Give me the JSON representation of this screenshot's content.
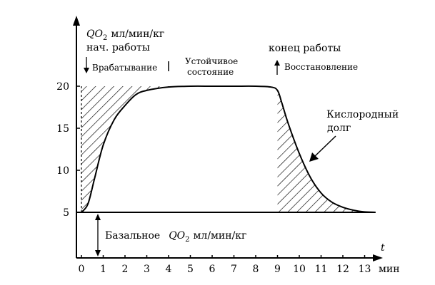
{
  "chart_data": {
    "type": "line",
    "xlabel": "t",
    "xunit": "мин",
    "ylim": [
      5,
      20
    ],
    "xlim": [
      0,
      13.5
    ],
    "xticks": [
      "0",
      "1",
      "2",
      "3",
      "4",
      "5",
      "6",
      "7",
      "8",
      "9",
      "10",
      "11",
      "12",
      "13"
    ],
    "yticks": [
      "5",
      "10",
      "15",
      "20"
    ],
    "series": [
      {
        "x": [
          0,
          0.3,
          0.6,
          1.0,
          1.5,
          2.0,
          2.5,
          3.0,
          4.0,
          5.0,
          6.0,
          7.0,
          8.0,
          8.7,
          9.0,
          9.2,
          9.5,
          10.0,
          10.5,
          11.0,
          11.5,
          12.0,
          12.5,
          13.0,
          13.5
        ],
        "y": [
          5,
          6,
          9,
          13,
          16,
          17.7,
          19,
          19.5,
          19.9,
          20,
          20,
          20,
          20,
          19.9,
          19.5,
          18,
          15.5,
          12,
          9.2,
          7.3,
          6.2,
          5.6,
          5.25,
          5.05,
          5
        ]
      }
    ]
  },
  "labels": {
    "y_axis_title_qo2": "QO",
    "y_axis_title_sub": "2",
    "y_axis_title_units": "мл/мин/кг",
    "start_work": "нач. работы",
    "warmup": "Врабатывание",
    "steady_state_1": "Устойчивое",
    "steady_state_2": "состояние",
    "end_work": "конец работы",
    "recovery": "Восстановление",
    "oxygen_debt_1": "Кислородный",
    "oxygen_debt_2": "долг",
    "basal_word": "Базальное",
    "basal_qo2": "QO",
    "basal_sub": "2",
    "basal_units": "мл/мин/кг"
  }
}
